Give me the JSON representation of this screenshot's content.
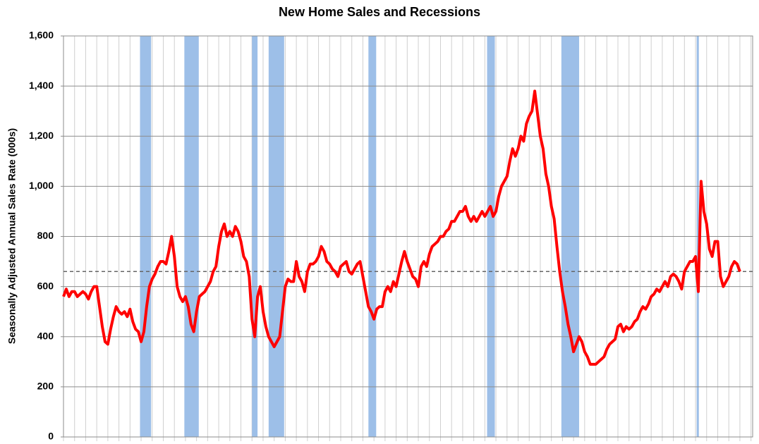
{
  "chart_data": {
    "type": "line",
    "title": "New Home Sales and Recessions",
    "y_label": "Seasonally Adjusted Annual Sales Rate (000s)",
    "ylim": [
      0,
      1600
    ],
    "yticks": [
      {
        "value": 0,
        "label": "0"
      },
      {
        "value": 200,
        "label": "200"
      },
      {
        "value": 400,
        "label": "400"
      },
      {
        "value": 600,
        "label": "600"
      },
      {
        "value": 800,
        "label": "800"
      },
      {
        "value": 1000,
        "label": "1,000"
      },
      {
        "value": 1200,
        "label": "1,200"
      },
      {
        "value": 1400,
        "label": "1,400"
      },
      {
        "value": 1600,
        "label": "1,600"
      }
    ],
    "grid": true,
    "reference_line": 660,
    "recessions": [
      [
        27.6,
        31.6
      ],
      [
        43.6,
        48.8
      ],
      [
        68,
        70
      ],
      [
        74,
        79.6
      ],
      [
        110,
        112.8
      ],
      [
        152.8,
        155.6
      ],
      [
        179.6,
        186
      ],
      [
        228.4,
        229.2
      ]
    ],
    "recession_color": "#9dbfe8",
    "series": [
      {
        "color": "#ff0000",
        "values": [
          560,
          590,
          560,
          580,
          580,
          560,
          570,
          580,
          570,
          550,
          580,
          600,
          600,
          520,
          440,
          380,
          370,
          430,
          480,
          520,
          500,
          490,
          500,
          480,
          510,
          460,
          430,
          420,
          380,
          420,
          520,
          600,
          630,
          650,
          680,
          700,
          700,
          690,
          740,
          800,
          720,
          600,
          560,
          540,
          560,
          520,
          450,
          420,
          500,
          560,
          570,
          580,
          600,
          620,
          660,
          680,
          760,
          820,
          850,
          800,
          820,
          800,
          840,
          820,
          780,
          720,
          700,
          640,
          470,
          400,
          560,
          600,
          500,
          440,
          400,
          380,
          360,
          380,
          400,
          500,
          600,
          630,
          620,
          620,
          700,
          640,
          620,
          580,
          660,
          690,
          690,
          700,
          720,
          760,
          740,
          700,
          690,
          670,
          660,
          640,
          680,
          690,
          700,
          660,
          650,
          670,
          690,
          700,
          640,
          580,
          520,
          500,
          470,
          510,
          520,
          520,
          580,
          600,
          580,
          620,
          600,
          650,
          700,
          740,
          700,
          670,
          640,
          630,
          600,
          680,
          700,
          680,
          730,
          760,
          770,
          780,
          800,
          800,
          820,
          830,
          860,
          860,
          880,
          900,
          900,
          920,
          880,
          860,
          880,
          860,
          880,
          900,
          880,
          900,
          920,
          880,
          900,
          960,
          1000,
          1020,
          1040,
          1100,
          1150,
          1120,
          1150,
          1200,
          1180,
          1250,
          1280,
          1300,
          1380,
          1290,
          1200,
          1150,
          1050,
          1000,
          920,
          870,
          760,
          660,
          580,
          520,
          450,
          400,
          340,
          370,
          400,
          380,
          340,
          320,
          290,
          290,
          290,
          300,
          310,
          320,
          350,
          370,
          380,
          390,
          440,
          450,
          420,
          440,
          430,
          440,
          460,
          470,
          500,
          520,
          510,
          530,
          560,
          570,
          590,
          580,
          600,
          620,
          600,
          640,
          650,
          640,
          620,
          590,
          660,
          680,
          700,
          700,
          720,
          580,
          1020,
          900,
          850,
          750,
          720,
          780,
          780,
          640,
          600,
          620,
          640,
          680,
          700,
          690,
          660
        ]
      }
    ]
  }
}
